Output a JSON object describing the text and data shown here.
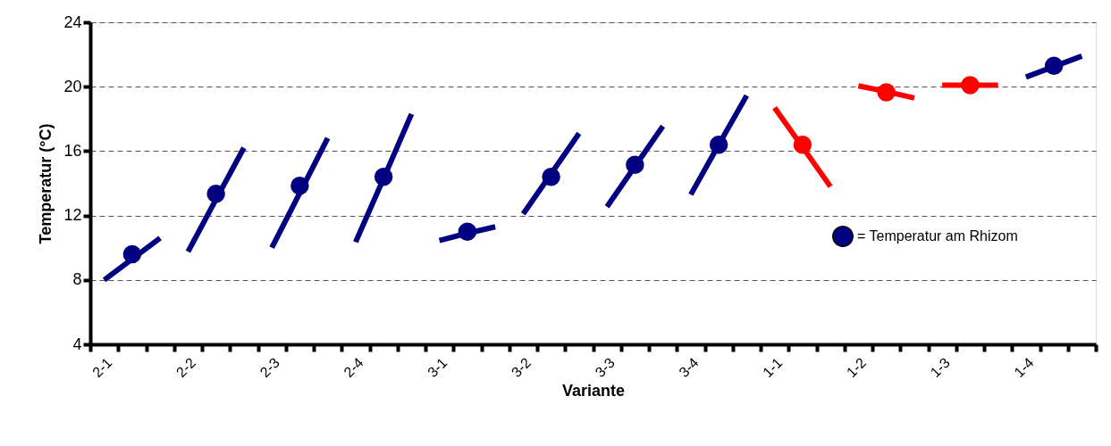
{
  "chart_data": {
    "type": "line",
    "xlabel": "Variante",
    "ylabel": "Temperatur (°C)",
    "categories": [
      "2-1",
      null,
      null,
      "2-2",
      null,
      null,
      "2-3",
      null,
      null,
      "2-4",
      null,
      null,
      "3-1",
      null,
      null,
      "3-2",
      null,
      null,
      "3-3",
      null,
      null,
      "3-4",
      null,
      null,
      "1-1",
      null,
      null,
      "1-2",
      null,
      null,
      "1-3",
      null,
      null,
      "1-4",
      null,
      null
    ],
    "ylim": [
      4,
      24
    ],
    "yticks": [
      4,
      8,
      12,
      16,
      20,
      24
    ],
    "grid": "y",
    "legend": "right",
    "line_style": "solid",
    "marker": "none",
    "series": [
      {
        "color": "#000080",
        "values": [
          8.0,
          9.3,
          10.6,
          null,
          null,
          null,
          null,
          null,
          null,
          null,
          null,
          null,
          null,
          null,
          null,
          null,
          null,
          null,
          null,
          null,
          null,
          null,
          null,
          null,
          null,
          null,
          null,
          null,
          null,
          null,
          null,
          null,
          null,
          null,
          null,
          null
        ]
      },
      {
        "color": "#000080",
        "values": [
          null,
          null,
          null,
          9.75,
          13.0,
          16.2,
          null,
          null,
          null,
          null,
          null,
          null,
          null,
          null,
          null,
          null,
          null,
          null,
          null,
          null,
          null,
          null,
          null,
          null,
          null,
          null,
          null,
          null,
          null,
          null,
          null,
          null,
          null,
          null,
          null,
          null
        ]
      },
      {
        "color": "#000080",
        "values": [
          null,
          null,
          null,
          null,
          null,
          null,
          10.0,
          13.4,
          16.8,
          null,
          null,
          null,
          null,
          null,
          null,
          null,
          null,
          null,
          null,
          null,
          null,
          null,
          null,
          null,
          null,
          null,
          null,
          null,
          null,
          null,
          null,
          null,
          null,
          null,
          null,
          null
        ]
      },
      {
        "color": "#000080",
        "values": [
          null,
          null,
          null,
          null,
          null,
          null,
          null,
          null,
          null,
          10.35,
          14.3,
          18.3,
          null,
          null,
          null,
          null,
          null,
          null,
          null,
          null,
          null,
          null,
          null,
          null,
          null,
          null,
          null,
          null,
          null,
          null,
          null,
          null,
          null,
          null,
          null,
          null
        ]
      },
      {
        "color": "#000080",
        "values": [
          null,
          null,
          null,
          null,
          null,
          null,
          null,
          null,
          null,
          null,
          null,
          null,
          10.45,
          10.9,
          11.3,
          null,
          null,
          null,
          null,
          null,
          null,
          null,
          null,
          null,
          null,
          null,
          null,
          null,
          null,
          null,
          null,
          null,
          null,
          null,
          null,
          null
        ]
      },
      {
        "color": "#000080",
        "values": [
          null,
          null,
          null,
          null,
          null,
          null,
          null,
          null,
          null,
          null,
          null,
          null,
          null,
          null,
          null,
          12.1,
          14.6,
          17.1,
          null,
          null,
          null,
          null,
          null,
          null,
          null,
          null,
          null,
          null,
          null,
          null,
          null,
          null,
          null,
          null,
          null,
          null
        ]
      },
      {
        "color": "#000080",
        "values": [
          null,
          null,
          null,
          null,
          null,
          null,
          null,
          null,
          null,
          null,
          null,
          null,
          null,
          null,
          null,
          null,
          null,
          null,
          12.55,
          15.05,
          17.55,
          null,
          null,
          null,
          null,
          null,
          null,
          null,
          null,
          null,
          null,
          null,
          null,
          null,
          null,
          null
        ]
      },
      {
        "color": "#000080",
        "values": [
          null,
          null,
          null,
          null,
          null,
          null,
          null,
          null,
          null,
          null,
          null,
          null,
          null,
          null,
          null,
          null,
          null,
          null,
          null,
          null,
          null,
          13.3,
          16.4,
          19.45,
          null,
          null,
          null,
          null,
          null,
          null,
          null,
          null,
          null,
          null,
          null,
          null
        ]
      },
      {
        "color": "#ff0000",
        "values": [
          null,
          null,
          null,
          null,
          null,
          null,
          null,
          null,
          null,
          null,
          null,
          null,
          null,
          null,
          null,
          null,
          null,
          null,
          null,
          null,
          null,
          null,
          null,
          null,
          18.7,
          16.25,
          13.8,
          null,
          null,
          null,
          null,
          null,
          null,
          null,
          null,
          null
        ]
      },
      {
        "color": "#ff0000",
        "values": [
          null,
          null,
          null,
          null,
          null,
          null,
          null,
          null,
          null,
          null,
          null,
          null,
          null,
          null,
          null,
          null,
          null,
          null,
          null,
          null,
          null,
          null,
          null,
          null,
          null,
          null,
          null,
          20.05,
          19.7,
          19.3,
          null,
          null,
          null,
          null,
          null,
          null
        ]
      },
      {
        "color": "#ff0000",
        "values": [
          null,
          null,
          null,
          null,
          null,
          null,
          null,
          null,
          null,
          null,
          null,
          null,
          null,
          null,
          null,
          null,
          null,
          null,
          null,
          null,
          null,
          null,
          null,
          null,
          null,
          null,
          null,
          null,
          null,
          null,
          20.1,
          20.1,
          20.1,
          null,
          null,
          null
        ]
      },
      {
        "color": "#000080",
        "values": [
          null,
          null,
          null,
          null,
          null,
          null,
          null,
          null,
          null,
          null,
          null,
          null,
          null,
          null,
          null,
          null,
          null,
          null,
          null,
          null,
          null,
          null,
          null,
          null,
          null,
          null,
          null,
          null,
          null,
          null,
          null,
          null,
          null,
          20.6,
          21.25,
          21.9
        ]
      },
      {
        "type": "scatter",
        "marker": "circle",
        "name": "= Temperatur am Rhizom",
        "color": "#000080",
        "values": [
          null,
          9.6,
          null,
          null,
          13.35,
          null,
          null,
          13.85,
          null,
          null,
          14.4,
          null,
          null,
          11.0,
          null,
          null,
          14.4,
          null,
          null,
          15.15,
          null,
          null,
          16.4,
          null,
          null,
          16.4,
          null,
          null,
          19.65,
          null,
          null,
          20.1,
          null,
          null,
          21.3,
          null
        ],
        "colors": [
          null,
          "#000080",
          null,
          null,
          "#000080",
          null,
          null,
          "#000080",
          null,
          null,
          "#000080",
          null,
          null,
          "#000080",
          null,
          null,
          "#000080",
          null,
          null,
          "#000080",
          null,
          null,
          "#000080",
          null,
          null,
          "#ff0000",
          null,
          null,
          "#ff0000",
          null,
          null,
          "#ff0000",
          null,
          null,
          "#000080",
          null
        ]
      }
    ]
  }
}
